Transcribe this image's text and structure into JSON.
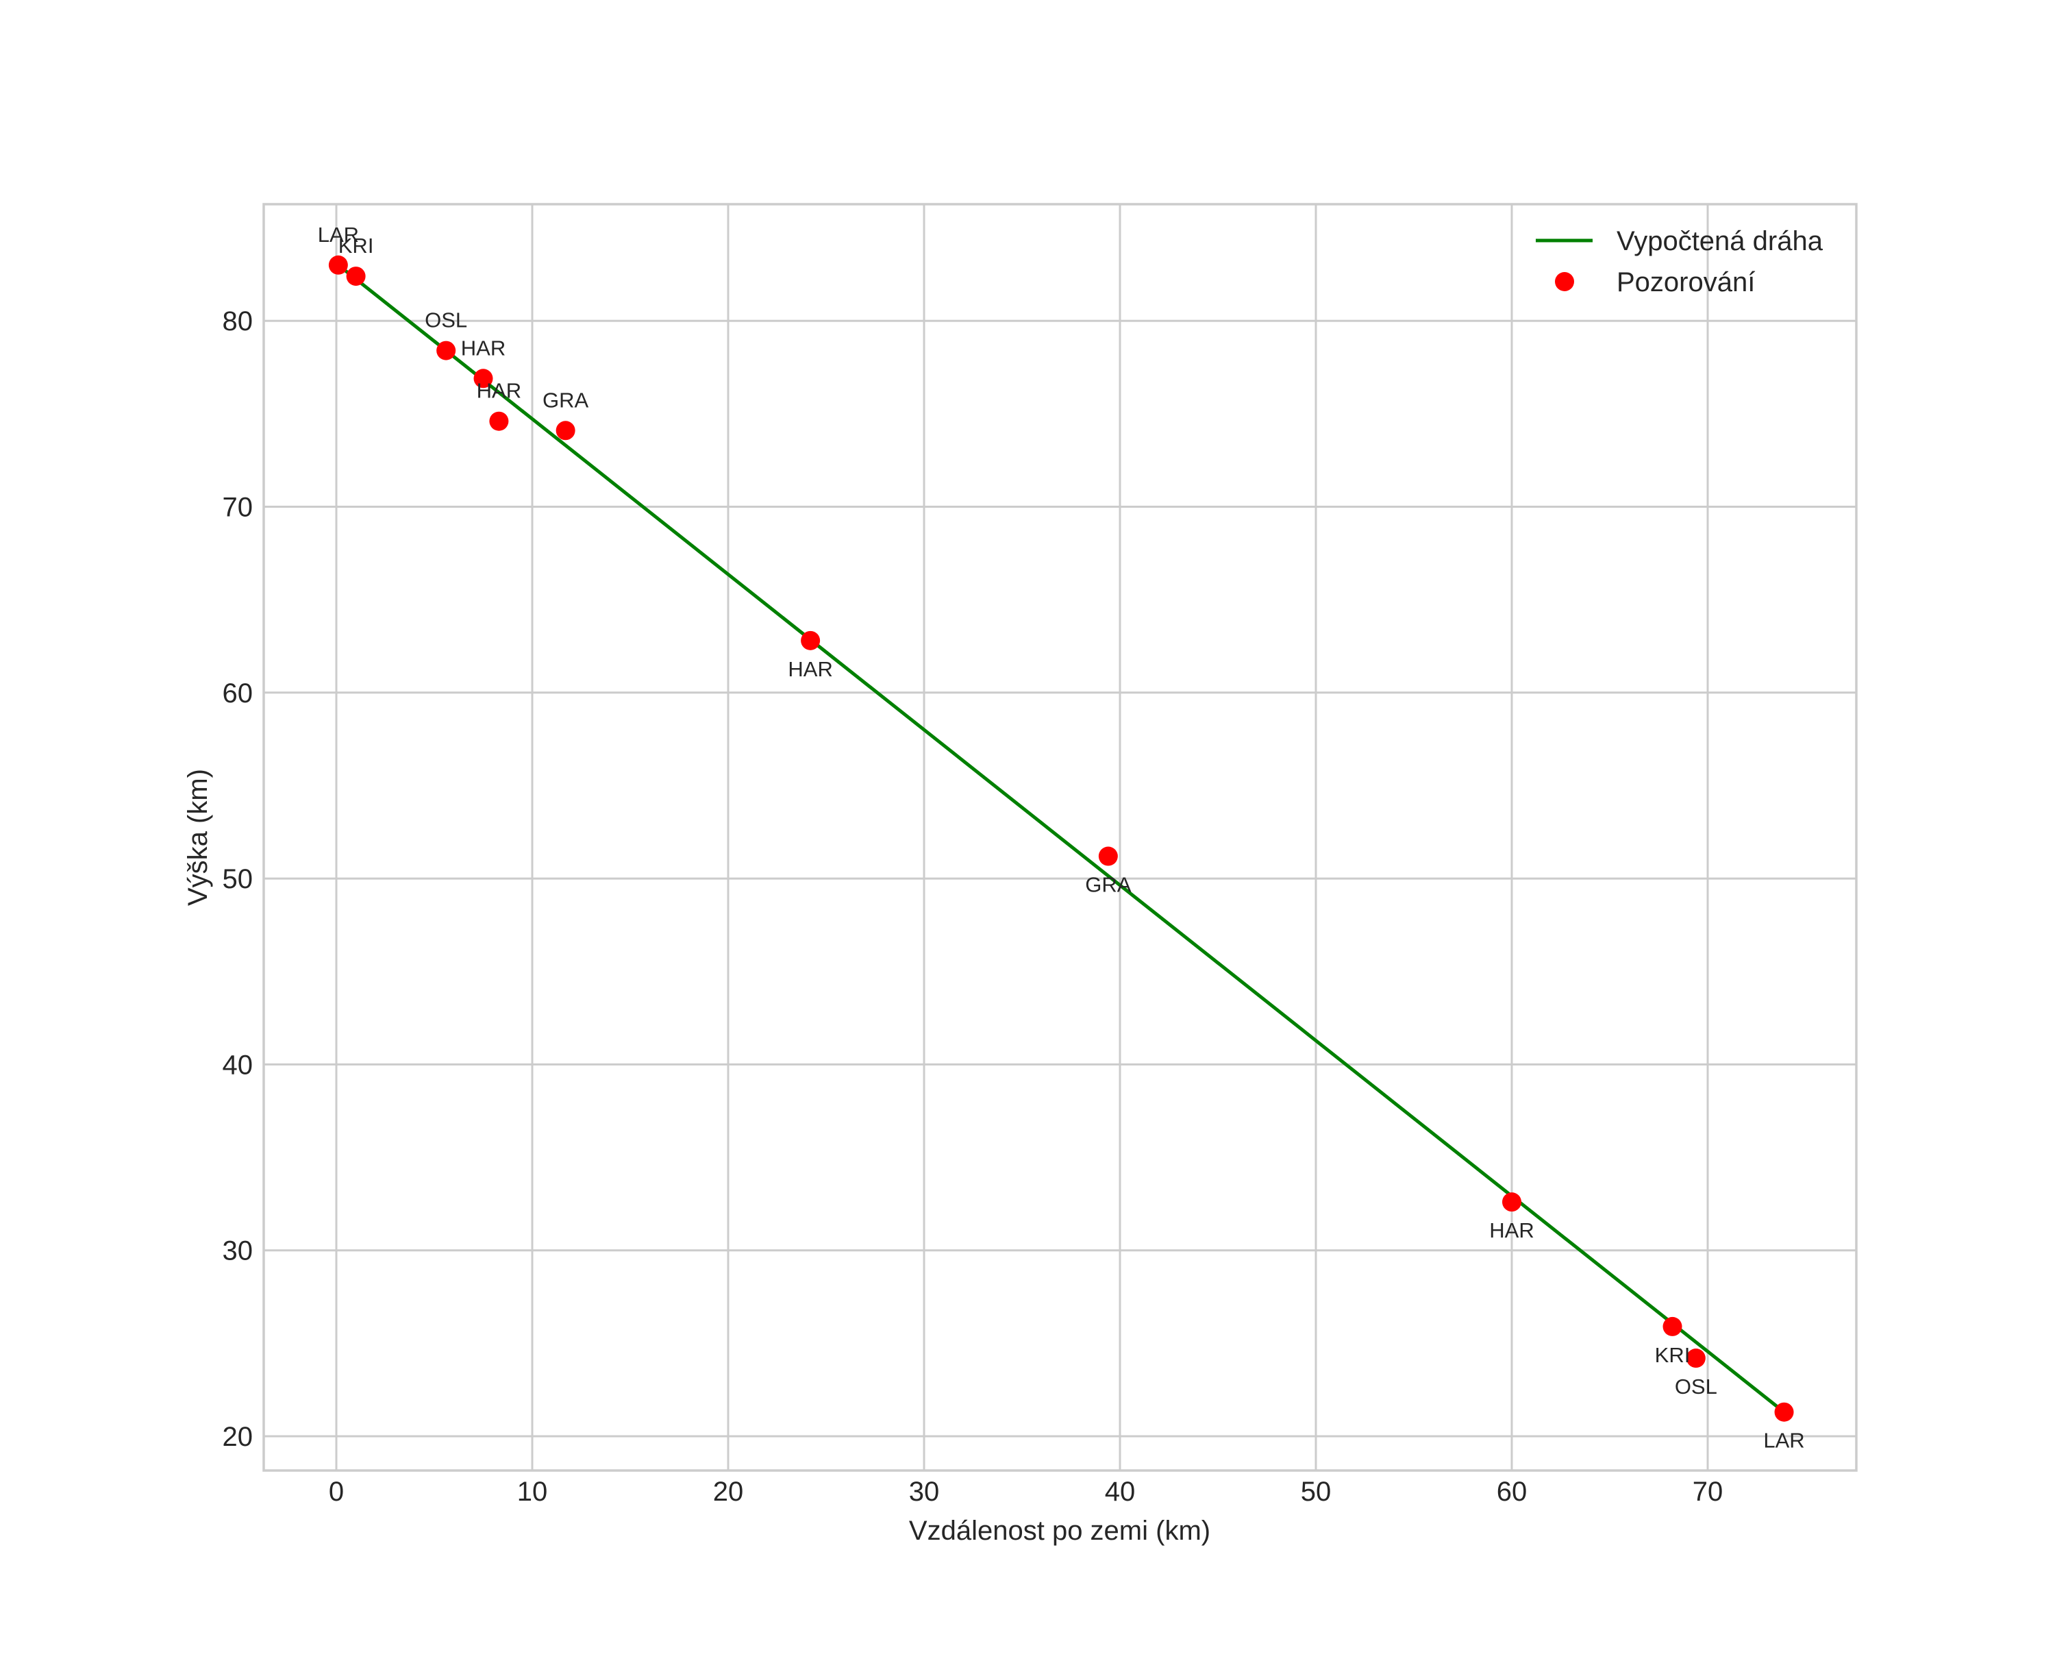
{
  "chart_data": {
    "type": "line+scatter",
    "title": "",
    "xlabel": "Vzdálenost po zemi (km)",
    "ylabel": "Výška (km)",
    "xlim": [
      -3.8,
      77.5
    ],
    "ylim": [
      18.2,
      86.0
    ],
    "xticks": [
      0,
      10,
      20,
      30,
      40,
      50,
      60,
      70
    ],
    "yticks": [
      20,
      30,
      40,
      50,
      60,
      70,
      80
    ],
    "xtick_labels": [
      "0",
      "10",
      "20",
      "30",
      "40",
      "50",
      "60",
      "70"
    ],
    "ytick_labels": [
      "20",
      "30",
      "40",
      "50",
      "60",
      "70",
      "80"
    ],
    "grid": true,
    "legend_position": "upper right",
    "series": [
      {
        "name": "Vypočtená dráha",
        "type": "line",
        "color": "#008000",
        "x": [
          0.1,
          73.9
        ],
        "y": [
          83.0,
          21.3
        ]
      },
      {
        "name": "Pozorování",
        "type": "scatter",
        "color": "#ff0000",
        "points": [
          {
            "x": 0.1,
            "y": 83.0,
            "label": "LAR",
            "label_pos": "above"
          },
          {
            "x": 1.0,
            "y": 82.4,
            "label": "KRI",
            "label_pos": "above"
          },
          {
            "x": 5.6,
            "y": 78.4,
            "label": "OSL",
            "label_pos": "above"
          },
          {
            "x": 7.5,
            "y": 76.9,
            "label": "HAR",
            "label_pos": "above"
          },
          {
            "x": 8.3,
            "y": 74.6,
            "label": "HAR",
            "label_pos": "above"
          },
          {
            "x": 11.7,
            "y": 74.1,
            "label": "GRA",
            "label_pos": "above"
          },
          {
            "x": 24.2,
            "y": 62.8,
            "label": "HAR",
            "label_pos": "below"
          },
          {
            "x": 39.4,
            "y": 51.2,
            "label": "GRA",
            "label_pos": "below"
          },
          {
            "x": 60.0,
            "y": 32.6,
            "label": "HAR",
            "label_pos": "below"
          },
          {
            "x": 68.2,
            "y": 25.9,
            "label": "KRI",
            "label_pos": "below"
          },
          {
            "x": 69.4,
            "y": 24.2,
            "label": "OSL",
            "label_pos": "below"
          },
          {
            "x": 73.9,
            "y": 21.3,
            "label": "LAR",
            "label_pos": "below"
          }
        ]
      }
    ]
  },
  "legend": {
    "items": [
      {
        "label": "Vypočtená dráha",
        "marker": "line",
        "color": "#008000"
      },
      {
        "label": "Pozorování",
        "marker": "dot",
        "color": "#ff0000"
      }
    ]
  },
  "colors": {
    "grid": "#cccccc",
    "text": "#262626",
    "line": "#008000",
    "points": "#ff0000"
  }
}
